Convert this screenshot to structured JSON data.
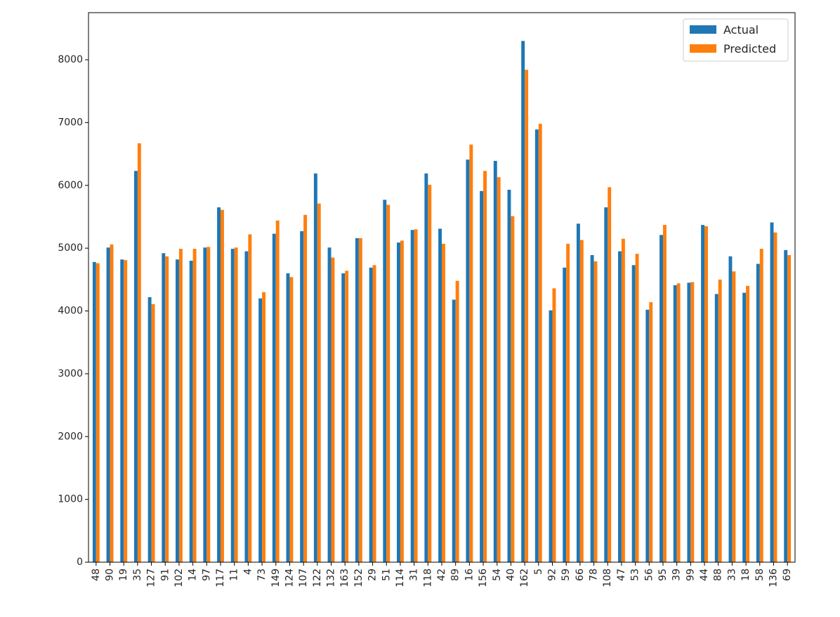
{
  "chart_data": {
    "type": "bar",
    "title": "",
    "xlabel": "",
    "ylabel": "",
    "ylim": [
      0,
      8750
    ],
    "yticks": [
      0,
      1000,
      2000,
      3000,
      4000,
      5000,
      6000,
      7000,
      8000
    ],
    "grid": false,
    "legend_position": "top-right",
    "categories": [
      "48",
      "90",
      "19",
      "35",
      "127",
      "91",
      "102",
      "14",
      "97",
      "117",
      "11",
      "4",
      "73",
      "149",
      "124",
      "107",
      "122",
      "132",
      "163",
      "152",
      "29",
      "51",
      "114",
      "31",
      "118",
      "42",
      "89",
      "16",
      "156",
      "54",
      "40",
      "162",
      "5",
      "92",
      "59",
      "66",
      "78",
      "108",
      "47",
      "53",
      "56",
      "95",
      "39",
      "99",
      "44",
      "88",
      "33",
      "18",
      "58",
      "136",
      "69"
    ],
    "series": [
      {
        "name": "Actual",
        "color": "#1f77b4",
        "values": [
          4780,
          5010,
          4820,
          6230,
          4220,
          4920,
          4820,
          4800,
          5010,
          5650,
          4990,
          4950,
          4200,
          5230,
          4600,
          5270,
          6190,
          5010,
          4600,
          5160,
          4690,
          5770,
          5090,
          5290,
          6190,
          5310,
          4180,
          6410,
          5910,
          6390,
          5930,
          8300,
          6890,
          4010,
          4690,
          5390,
          4890,
          5650,
          4950,
          4730,
          4020,
          5210,
          4410,
          4450,
          5370,
          4270,
          4870,
          4290,
          4750,
          5410,
          4970
        ]
      },
      {
        "name": "Predicted",
        "color": "#ff7f0e",
        "values": [
          4760,
          5060,
          4810,
          6670,
          4110,
          4870,
          4990,
          4990,
          5020,
          5610,
          5010,
          5220,
          4300,
          5440,
          4540,
          5530,
          5710,
          4850,
          4640,
          5160,
          4730,
          5690,
          5120,
          5300,
          6010,
          5070,
          4480,
          6650,
          6230,
          6130,
          5510,
          7840,
          6980,
          4360,
          5070,
          5130,
          4790,
          5970,
          5150,
          4910,
          4140,
          5370,
          4440,
          4460,
          5350,
          4500,
          4630,
          4400,
          4990,
          5250,
          4890
        ]
      }
    ]
  }
}
